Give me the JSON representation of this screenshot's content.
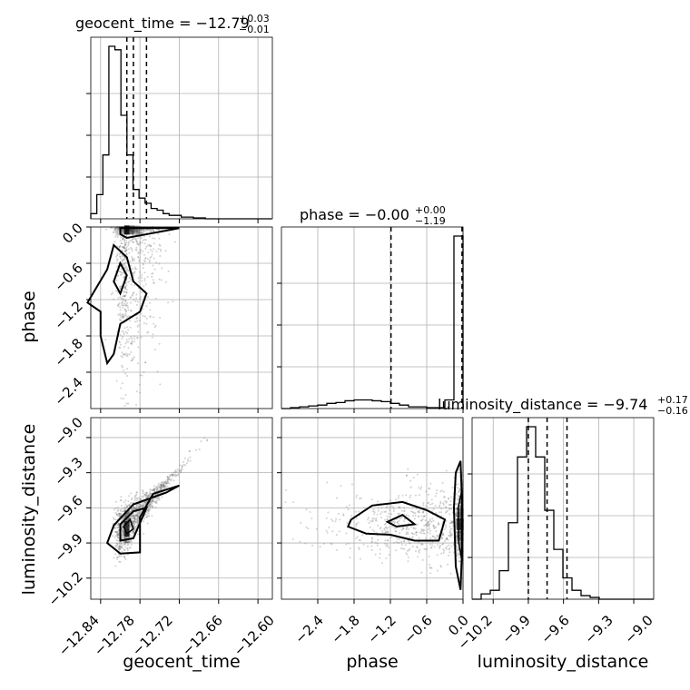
{
  "chart_data": {
    "type": "corner",
    "parameters": [
      "geocent_time",
      "phase",
      "luminosity_distance"
    ],
    "titles": [
      {
        "param": "geocent_time",
        "prefix": "geocent_time = ",
        "median": "−12.79",
        "plus": "+0.03",
        "minus": "−0.01"
      },
      {
        "param": "phase",
        "prefix": "phase = ",
        "median": "−0.00",
        "plus": "+0.00",
        "minus": "−1.19"
      },
      {
        "param": "luminosity_distance",
        "prefix": "luminosity_distance = ",
        "median": "−9.74",
        "plus": "+0.17",
        "minus": "−0.16"
      }
    ],
    "axes": {
      "geocent_time": {
        "range": [
          -12.855,
          -12.578
        ],
        "ticks": [
          -12.84,
          -12.78,
          -12.72,
          -12.66,
          -12.6
        ],
        "tick_labels": [
          "−12.84",
          "−12.78",
          "−12.72",
          "−12.66",
          "−12.60"
        ],
        "label": "geocent_time"
      },
      "phase": {
        "range": [
          -3.0,
          0.0
        ],
        "ticks": [
          -2.4,
          -1.8,
          -1.2,
          -0.6,
          0.0
        ],
        "tick_labels": [
          "−2.4",
          "−1.8",
          "−1.2",
          "−0.6",
          "0.0"
        ],
        "label": "phase"
      },
      "luminosity_distance": {
        "range": [
          -10.38,
          -8.83
        ],
        "ticks": [
          -10.2,
          -9.9,
          -9.6,
          -9.3,
          -9.0
        ],
        "tick_labels": [
          "−10.2",
          "−9.9",
          "−9.6",
          "−9.3",
          "−9.0"
        ],
        "label": "luminosity_distance"
      }
    },
    "histograms": {
      "geocent_time": {
        "bin_edges_start": -12.855,
        "bin_width": 0.0092,
        "counts": [
          0.03,
          0.14,
          0.37,
          1.0,
          0.98,
          0.6,
          0.37,
          0.17,
          0.12,
          0.09,
          0.06,
          0.05,
          0.03,
          0.02,
          0.02,
          0.01,
          0.01,
          0.005,
          0.005,
          0.0,
          0.0,
          0.0,
          0.0,
          0.0,
          0.0,
          0.0,
          0.0,
          0.0,
          0.0,
          0.0
        ],
        "quantiles": [
          -12.8,
          -12.79,
          -12.77
        ]
      },
      "phase": {
        "bin_edges_start": -3.0,
        "bin_width": 0.15,
        "counts": [
          0.0,
          0.005,
          0.01,
          0.015,
          0.02,
          0.03,
          0.035,
          0.045,
          0.05,
          0.05,
          0.045,
          0.04,
          0.03,
          0.02,
          0.01,
          0.01,
          0.005,
          0.005,
          0.05,
          1.0
        ],
        "quantiles": [
          -1.19,
          -0.0,
          0.0
        ]
      },
      "luminosity_distance": {
        "bin_edges_start": -10.38,
        "bin_width": 0.0775,
        "counts": [
          0.0,
          0.03,
          0.05,
          0.16,
          0.43,
          0.8,
          0.97,
          0.8,
          0.5,
          0.28,
          0.12,
          0.05,
          0.02,
          0.01,
          0.0,
          0.0,
          0.0,
          0.0,
          0.0,
          0.0
        ],
        "quantiles": [
          -9.9,
          -9.74,
          -9.57
        ]
      }
    },
    "joint_panels": [
      {
        "x": "geocent_time",
        "y": "phase",
        "style": "scatter+contours"
      },
      {
        "x": "geocent_time",
        "y": "luminosity_distance",
        "style": "scatter+contours"
      },
      {
        "x": "phase",
        "y": "luminosity_distance",
        "style": "scatter+contours"
      }
    ],
    "grid": true,
    "colors": {
      "line": "#000000",
      "grid": "#b0b0b0",
      "points": "#7f7f7f"
    }
  }
}
